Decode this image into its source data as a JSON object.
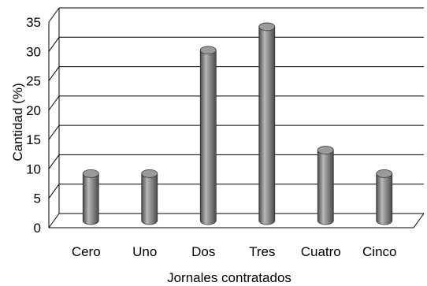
{
  "chart_data": {
    "type": "bar",
    "style": "3d-cylinder",
    "title": "",
    "xlabel": "Jornales contratados",
    "ylabel": "Cantidad (%)",
    "categories": [
      "Cero",
      "Uno",
      "Dos",
      "Tres",
      "Cuatro",
      "Cinco"
    ],
    "values": [
      8,
      8,
      29,
      33,
      12,
      8
    ],
    "ylim": [
      0,
      35
    ],
    "yticks": [
      0,
      5,
      10,
      15,
      20,
      25,
      30,
      35
    ],
    "yticks_text": [
      "0",
      "5",
      "10",
      "15",
      "20",
      "25",
      "30",
      "35"
    ],
    "grid": true,
    "legend": "none",
    "colors": {
      "bar": "#8a8a8a",
      "bar_dark": "#4a4a4a",
      "bar_light": "#b8b8b8",
      "grid": "#000000"
    }
  }
}
